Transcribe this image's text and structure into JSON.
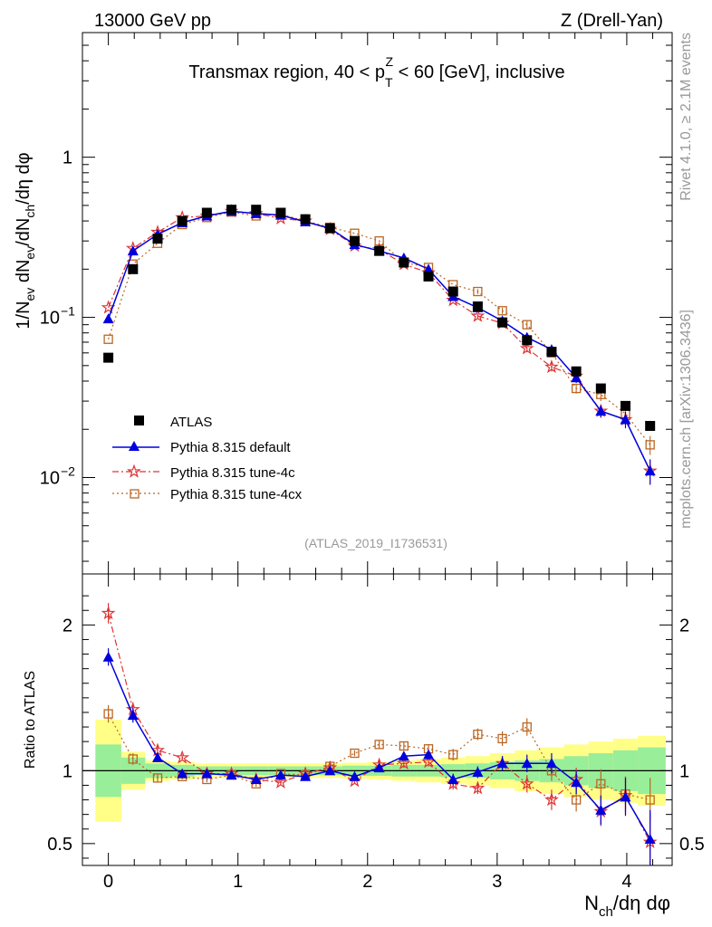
{
  "header": {
    "left": "13000 GeV pp",
    "right": "Z (Drell-Yan)"
  },
  "side": {
    "rivet": "Rivet 4.1.0, ≥ 2.1M events",
    "mcplots": "mcplots.cern.ch [arXiv:1306.3436]"
  },
  "chart_data": {
    "type": "scatter",
    "title": "Transmax region, 40 < p_T^Z < 60 [GeV], inclusive",
    "xlabel": "N_ch/dη dφ",
    "ylabel": "1/N_ev dN_ev/dN_ch/dη dφ",
    "ratio_ylabel": "Ratio to ATLAS",
    "analysis_tag": "(ATLAS_2019_I1736531)",
    "xlim": [
      -0.2,
      4.35
    ],
    "ylim_main": [
      0.0025,
      6.0
    ],
    "yscale_main": "log",
    "ylim_ratio": [
      0.35,
      2.35
    ],
    "x_ticks": [
      "0",
      "1",
      "2",
      "3",
      "4"
    ],
    "y_ticks_main": [
      "10^-2",
      "10^-1",
      "1"
    ],
    "y_ticks_ratio": [
      "0.5",
      "1",
      "2"
    ],
    "legend_position": "lower-left",
    "x": [
      0.0,
      0.19,
      0.38,
      0.57,
      0.76,
      0.95,
      1.14,
      1.33,
      1.52,
      1.71,
      1.9,
      2.09,
      2.28,
      2.47,
      2.66,
      2.85,
      3.04,
      3.23,
      3.42,
      3.61,
      3.8,
      3.99,
      4.18
    ],
    "band_edges": [
      -0.1,
      0.1,
      0.285,
      0.475,
      0.665,
      0.855,
      1.045,
      1.235,
      1.425,
      1.615,
      1.805,
      1.995,
      2.185,
      2.375,
      2.565,
      2.755,
      2.945,
      3.135,
      3.325,
      3.515,
      3.705,
      3.895,
      4.085,
      4.3
    ],
    "band_stat": [
      0.18,
      0.09,
      0.05,
      0.04,
      0.03,
      0.03,
      0.03,
      0.03,
      0.03,
      0.03,
      0.035,
      0.035,
      0.04,
      0.04,
      0.045,
      0.05,
      0.06,
      0.07,
      0.08,
      0.1,
      0.12,
      0.14,
      0.16
    ],
    "band_total": [
      0.35,
      0.13,
      0.07,
      0.06,
      0.05,
      0.05,
      0.05,
      0.05,
      0.05,
      0.05,
      0.055,
      0.06,
      0.07,
      0.08,
      0.09,
      0.1,
      0.12,
      0.14,
      0.16,
      0.18,
      0.2,
      0.22,
      0.24
    ],
    "series": [
      {
        "name": "ATLAS",
        "color": "#000000",
        "values": [
          0.056,
          0.2,
          0.31,
          0.4,
          0.45,
          0.47,
          0.47,
          0.45,
          0.41,
          0.36,
          0.3,
          0.26,
          0.22,
          0.18,
          0.145,
          0.117,
          0.093,
          0.072,
          0.061,
          0.046,
          0.036,
          0.028,
          0.021
        ],
        "ratio": [
          1,
          1,
          1,
          1,
          1,
          1,
          1,
          1,
          1,
          1,
          1,
          1,
          1,
          1,
          1,
          1,
          1,
          1,
          1,
          1,
          1,
          1,
          1
        ]
      },
      {
        "name": "Pythia 8.315 default",
        "color": "#0000dd",
        "values": [
          0.098,
          0.26,
          0.33,
          0.39,
          0.43,
          0.46,
          0.445,
          0.435,
          0.395,
          0.36,
          0.285,
          0.26,
          0.235,
          0.2,
          0.135,
          0.115,
          0.095,
          0.075,
          0.063,
          0.042,
          0.026,
          0.023,
          0.011
        ],
        "ratio": [
          1.78,
          1.38,
          1.09,
          0.98,
          0.98,
          0.97,
          0.94,
          0.97,
          0.96,
          1.0,
          0.96,
          1.02,
          1.1,
          1.11,
          0.94,
          0.99,
          1.05,
          1.05,
          1.05,
          0.92,
          0.73,
          0.82,
          0.53
        ],
        "ratio_err": [
          0.06,
          0.05,
          0.03,
          0.02,
          0.02,
          0.02,
          0.02,
          0.02,
          0.02,
          0.02,
          0.02,
          0.03,
          0.03,
          0.03,
          0.04,
          0.04,
          0.05,
          0.06,
          0.07,
          0.08,
          0.1,
          0.13,
          0.2
        ]
      },
      {
        "name": "Pythia 8.315 tune-4c",
        "color": "#dd3333",
        "values": [
          0.115,
          0.27,
          0.34,
          0.42,
          0.43,
          0.46,
          0.445,
          0.415,
          0.4,
          0.355,
          0.28,
          0.265,
          0.215,
          0.19,
          0.128,
          0.102,
          0.092,
          0.064,
          0.049,
          0.043,
          0.026,
          0.023,
          0.011
        ],
        "ratio": [
          2.08,
          1.42,
          1.14,
          1.09,
          0.98,
          0.98,
          0.94,
          0.92,
          0.98,
          1.02,
          0.93,
          1.04,
          1.05,
          1.06,
          0.91,
          0.88,
          1.05,
          0.91,
          0.8,
          0.94,
          0.72,
          0.83,
          0.51
        ],
        "ratio_err": [
          0.07,
          0.05,
          0.03,
          0.02,
          0.02,
          0.02,
          0.02,
          0.02,
          0.02,
          0.02,
          0.02,
          0.03,
          0.03,
          0.03,
          0.04,
          0.04,
          0.05,
          0.06,
          0.07,
          0.08,
          0.1,
          0.13,
          0.2
        ]
      },
      {
        "name": "Pythia 8.315 tune-4cx",
        "color": "#bb6622",
        "values": [
          0.073,
          0.215,
          0.29,
          0.38,
          0.42,
          0.455,
          0.43,
          0.44,
          0.4,
          0.365,
          0.335,
          0.3,
          0.22,
          0.205,
          0.16,
          0.145,
          0.11,
          0.09,
          0.06,
          0.036,
          0.033,
          0.025,
          0.016
        ],
        "ratio": [
          1.39,
          1.08,
          0.95,
          0.96,
          0.94,
          0.97,
          0.91,
          0.98,
          0.97,
          1.03,
          1.12,
          1.18,
          1.17,
          1.15,
          1.11,
          1.25,
          1.22,
          1.3,
          1.0,
          0.8,
          0.91,
          0.84,
          0.8
        ],
        "ratio_err": [
          0.06,
          0.04,
          0.03,
          0.02,
          0.02,
          0.02,
          0.02,
          0.02,
          0.02,
          0.02,
          0.02,
          0.03,
          0.03,
          0.03,
          0.04,
          0.04,
          0.05,
          0.06,
          0.07,
          0.08,
          0.1,
          0.12,
          0.15
        ]
      }
    ]
  }
}
